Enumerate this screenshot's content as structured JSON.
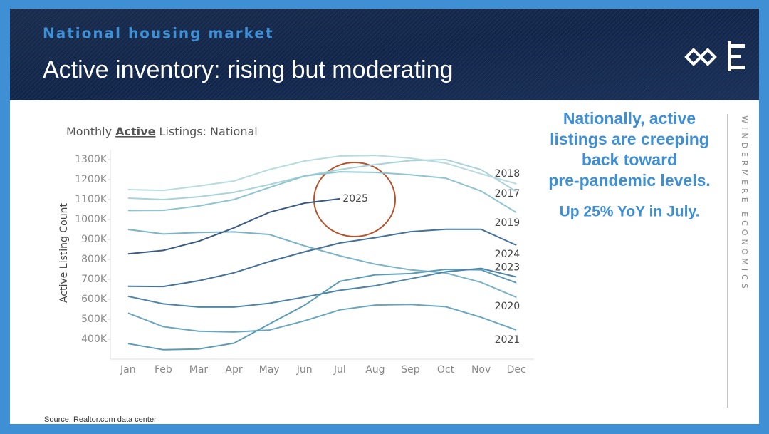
{
  "header": {
    "kicker": "National housing market",
    "title": "Active inventory: rising but moderating"
  },
  "side": {
    "main": "Nationally, active listings are creeping back toward pre-pandemic levels.",
    "highlight": "Up 25% YoY in July."
  },
  "brand": "WINDERMERE ECONOMICS",
  "source": "Source: Realtor.com data center",
  "chart_data": {
    "type": "line",
    "title_parts": [
      "Monthly",
      "Active",
      "Listings: National"
    ],
    "y_label": "Active Listing Count",
    "categories": [
      "Jan",
      "Feb",
      "Mar",
      "Apr",
      "May",
      "Jun",
      "Jul",
      "Aug",
      "Sep",
      "Oct",
      "Nov",
      "Dec"
    ],
    "ylim": [
      300000,
      1350000
    ],
    "yticks": [
      {
        "value": 400000,
        "label": "400K"
      },
      {
        "value": 500000,
        "label": "500K"
      },
      {
        "value": 600000,
        "label": "600K"
      },
      {
        "value": 700000,
        "label": "700K"
      },
      {
        "value": 800000,
        "label": "800K"
      },
      {
        "value": 900000,
        "label": "900K"
      },
      {
        "value": 1000000,
        "label": "1000K"
      },
      {
        "value": 1100000,
        "label": "1100K"
      },
      {
        "value": 1200000,
        "label": "1200K"
      },
      {
        "value": 1300000,
        "label": "1300K"
      }
    ],
    "series": [
      {
        "name": "2017",
        "color": "#a9d3d9",
        "values": [
          1107000,
          1100000,
          1114000,
          1136000,
          1175000,
          1218000,
          1250000,
          1275000,
          1295000,
          1300000,
          1250000,
          1140000
        ]
      },
      {
        "name": "2018",
        "color": "#b7dcdf",
        "values": [
          1150000,
          1146000,
          1168000,
          1193000,
          1250000,
          1293000,
          1318000,
          1321000,
          1307000,
          1282000,
          1229000,
          1179000
        ]
      },
      {
        "name": "2019",
        "color": "#8fc5cf",
        "values": [
          1045000,
          1046000,
          1068000,
          1100000,
          1160000,
          1218000,
          1239000,
          1236000,
          1224000,
          1207000,
          1143000,
          1035000
        ]
      },
      {
        "name": "2020",
        "color": "#7ab4c6",
        "values": [
          950000,
          927000,
          935000,
          938000,
          925000,
          868000,
          818000,
          776000,
          748000,
          732000,
          685000,
          610000
        ]
      },
      {
        "name": "2021",
        "color": "#6aa7bf",
        "values": [
          531000,
          463000,
          440000,
          436000,
          446000,
          492000,
          547000,
          571000,
          574000,
          563000,
          510000,
          446000
        ]
      },
      {
        "name": null,
        "color": "#5c9bb6",
        "values": [
          378000,
          347000,
          351000,
          380000,
          476000,
          570000,
          690000,
          723000,
          729000,
          750000,
          748000,
          683000
        ]
      },
      {
        "name": "2023",
        "color": "#4f86a8",
        "values": [
          615000,
          577000,
          561000,
          561000,
          580000,
          611000,
          645000,
          668000,
          703000,
          738000,
          755000,
          712000
        ]
      },
      {
        "name": "2024",
        "color": "#44729a",
        "values": [
          665000,
          664000,
          693000,
          733000,
          789000,
          838000,
          882000,
          909000,
          939000,
          951000,
          951000,
          871000
        ]
      },
      {
        "name": "2025",
        "color": "#3b5b82",
        "values": [
          828000,
          845000,
          891000,
          958000,
          1036000,
          1082000,
          1104000,
          null,
          null,
          null,
          null,
          null
        ]
      }
    ]
  }
}
